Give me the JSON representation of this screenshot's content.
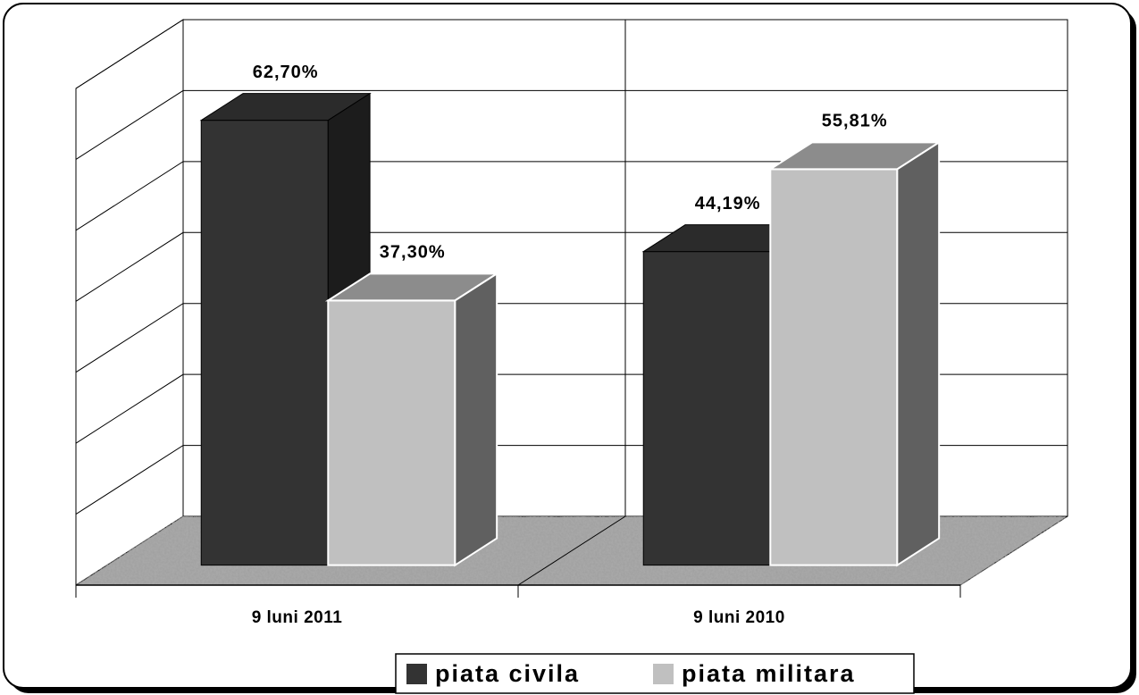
{
  "chart_data": {
    "type": "bar3d",
    "categories": [
      "9 luni 2011",
      "9 luni 2010"
    ],
    "series": [
      {
        "name": "piata civila",
        "color": "#333333",
        "values": [
          62.7,
          44.19
        ],
        "value_labels": [
          "62,70%",
          "44,19%"
        ]
      },
      {
        "name": "piata militara",
        "color": "#c0c0c0",
        "values": [
          37.3,
          55.81
        ],
        "value_labels": [
          "37,30%",
          "55,81%"
        ]
      }
    ],
    "ylim": [
      0,
      70
    ],
    "yticks": [
      0,
      10,
      20,
      30,
      40,
      50,
      60,
      70
    ],
    "grid": true,
    "legend": "bottom"
  }
}
